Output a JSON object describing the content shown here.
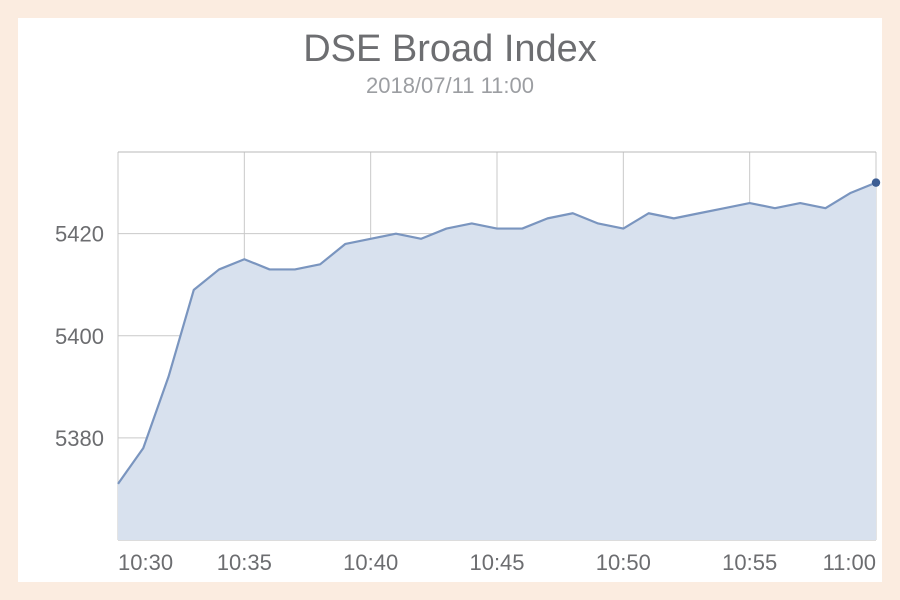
{
  "frame": {
    "outer_bg": "#fbece0",
    "inner_bg": "#ffffff"
  },
  "header": {
    "title": "DSE Broad Index",
    "title_fontsize": 38,
    "title_color": "#6d6e71",
    "subtitle": "2018/07/11   11:00",
    "subtitle_fontsize": 22,
    "subtitle_color": "#9c9ea2"
  },
  "chart": {
    "type": "area",
    "background_color": "#ffffff",
    "plot_border_color": "#b9b9b9",
    "grid_color": "#c9c9c9",
    "grid_width": 1,
    "area_fill": "#d8e1ee",
    "area_fill_opacity": 1,
    "line_color": "#7a95bf",
    "line_width": 2.2,
    "end_marker_color": "#3d5e94",
    "end_marker_radius": 4.2,
    "axis_label_color": "#6c6d70",
    "axis_label_fontsize": 22,
    "x": {
      "ticks": [
        "10:30",
        "10:35",
        "10:40",
        "10:45",
        "10:50",
        "10:55",
        "11:00"
      ],
      "min_minute": 630,
      "max_minute": 660
    },
    "y": {
      "ticks": [
        5380,
        5400,
        5420
      ],
      "min": 5360,
      "max": 5436,
      "baseline": 5360
    },
    "series": {
      "minutes": [
        630,
        631,
        632,
        633,
        634,
        635,
        636,
        637,
        638,
        639,
        640,
        641,
        642,
        643,
        644,
        645,
        646,
        647,
        648,
        649,
        650,
        651,
        652,
        653,
        654,
        655,
        656,
        657,
        658,
        659,
        660
      ],
      "values": [
        5371,
        5378,
        5392,
        5409,
        5413,
        5415,
        5413,
        5413,
        5414,
        5418,
        5419,
        5420,
        5419,
        5421,
        5422,
        5421,
        5421,
        5423,
        5424,
        5422,
        5421,
        5424,
        5423,
        5424,
        5425,
        5426,
        5425,
        5426,
        5425,
        5428,
        5430
      ]
    }
  }
}
